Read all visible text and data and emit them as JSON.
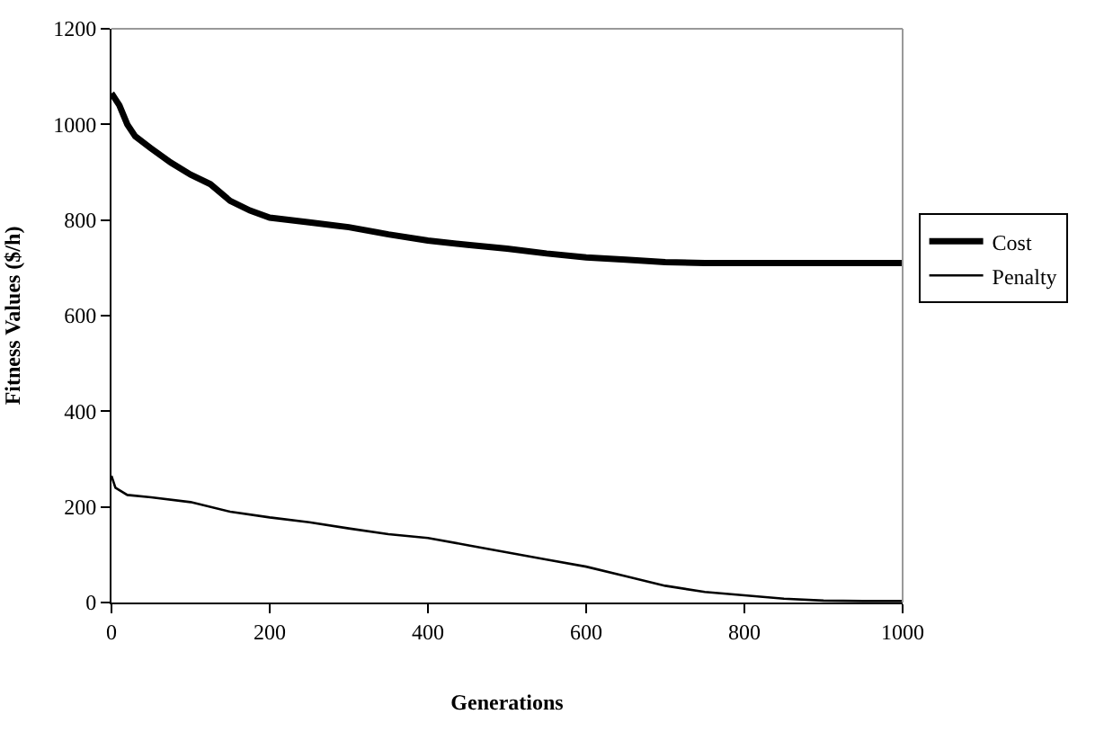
{
  "chart_data": {
    "type": "line",
    "xlabel": "Generations",
    "ylabel": "Fitness Values ($/h)",
    "xlim": [
      0,
      1000
    ],
    "xticks": [
      0,
      200,
      400,
      600,
      800,
      1000
    ],
    "ylim": [
      0,
      1200
    ],
    "yticks": [
      0,
      200,
      400,
      600,
      800,
      1000,
      1200
    ],
    "grid": false,
    "legend": "right",
    "marker": "none",
    "line_style": "solid",
    "series": [
      {
        "name": "Cost",
        "color": "#000000",
        "x": [
          0,
          10,
          20,
          30,
          50,
          75,
          100,
          125,
          150,
          175,
          200,
          250,
          300,
          350,
          400,
          450,
          500,
          550,
          600,
          650,
          700,
          750,
          800,
          900,
          1000
        ],
        "values": [
          1065,
          1040,
          1000,
          975,
          950,
          920,
          895,
          875,
          840,
          820,
          805,
          795,
          785,
          770,
          757,
          748,
          740,
          730,
          722,
          717,
          712,
          710,
          710,
          710,
          710
        ]
      },
      {
        "name": "Penalty",
        "color": "#000000",
        "x": [
          0,
          5,
          20,
          50,
          100,
          150,
          200,
          250,
          300,
          350,
          400,
          450,
          500,
          550,
          600,
          650,
          700,
          750,
          800,
          850,
          900,
          950,
          1000
        ],
        "values": [
          265,
          240,
          225,
          220,
          210,
          190,
          178,
          168,
          155,
          143,
          135,
          120,
          105,
          90,
          75,
          55,
          35,
          22,
          15,
          8,
          4,
          3,
          3
        ]
      }
    ]
  }
}
